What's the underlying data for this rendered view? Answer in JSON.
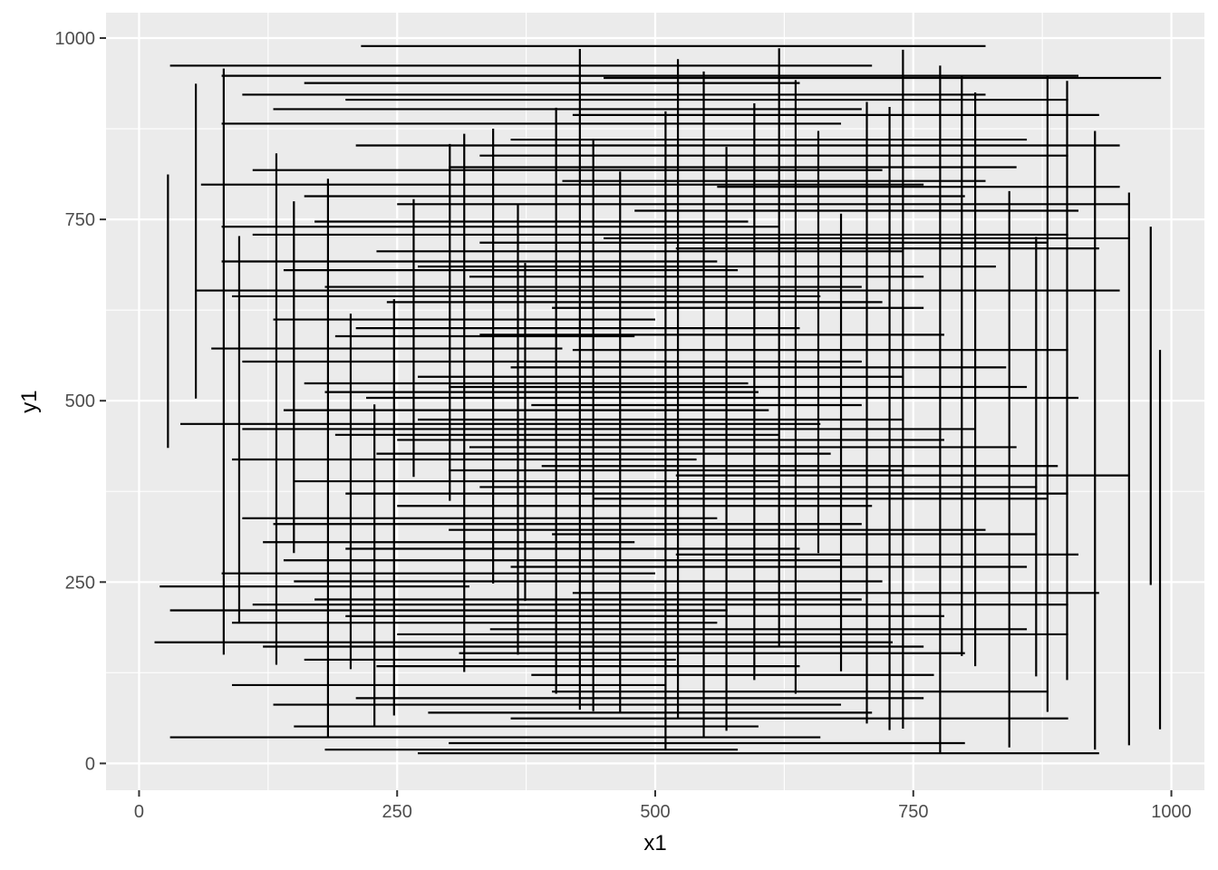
{
  "chart_data": {
    "type": "segment",
    "title": "",
    "xlabel": "x1",
    "ylabel": "y1",
    "xlim": [
      -32,
      1032
    ],
    "ylim": [
      -37,
      1035
    ],
    "xticks": [
      {
        "value": 0,
        "label": "0"
      },
      {
        "value": 250,
        "label": "250"
      },
      {
        "value": 500,
        "label": "500"
      },
      {
        "value": 750,
        "label": "750"
      },
      {
        "value": 1000,
        "label": "1000"
      }
    ],
    "yticks": [
      {
        "value": 0,
        "label": "0"
      },
      {
        "value": 250,
        "label": "250"
      },
      {
        "value": 500,
        "label": "500"
      },
      {
        "value": 750,
        "label": "750"
      },
      {
        "value": 1000,
        "label": "1000"
      }
    ],
    "x_minor": [
      125,
      375,
      625,
      875
    ],
    "y_minor": [
      125,
      375,
      625,
      875
    ],
    "grid": true,
    "panel_color": "#ebebeb",
    "grid_color": "#ffffff",
    "segment_color": "#000000",
    "horizontal_segments": [
      [
        215,
        820,
        989
      ],
      [
        30,
        710,
        962
      ],
      [
        80,
        910,
        948
      ],
      [
        450,
        990,
        945
      ],
      [
        160,
        640,
        938
      ],
      [
        100,
        820,
        922
      ],
      [
        200,
        900,
        915
      ],
      [
        130,
        700,
        902
      ],
      [
        420,
        930,
        894
      ],
      [
        80,
        680,
        882
      ],
      [
        360,
        860,
        860
      ],
      [
        210,
        950,
        852
      ],
      [
        330,
        900,
        838
      ],
      [
        300,
        850,
        822
      ],
      [
        110,
        720,
        818
      ],
      [
        410,
        820,
        803
      ],
      [
        60,
        760,
        798
      ],
      [
        560,
        950,
        795
      ],
      [
        160,
        800,
        782
      ],
      [
        250,
        960,
        771
      ],
      [
        480,
        910,
        762
      ],
      [
        170,
        590,
        747
      ],
      [
        80,
        620,
        740
      ],
      [
        110,
        900,
        729
      ],
      [
        450,
        960,
        724
      ],
      [
        330,
        880,
        718
      ],
      [
        230,
        740,
        706
      ],
      [
        520,
        930,
        710
      ],
      [
        80,
        560,
        692
      ],
      [
        270,
        830,
        685
      ],
      [
        140,
        580,
        680
      ],
      [
        320,
        760,
        671
      ],
      [
        180,
        700,
        657
      ],
      [
        55,
        950,
        652
      ],
      [
        90,
        660,
        644
      ],
      [
        240,
        720,
        636
      ],
      [
        400,
        760,
        628
      ],
      [
        130,
        500,
        612
      ],
      [
        210,
        640,
        600
      ],
      [
        330,
        780,
        591
      ],
      [
        190,
        480,
        589
      ],
      [
        70,
        410,
        572
      ],
      [
        420,
        900,
        570
      ],
      [
        100,
        700,
        554
      ],
      [
        360,
        840,
        546
      ],
      [
        270,
        740,
        533
      ],
      [
        160,
        590,
        524
      ],
      [
        300,
        860,
        519
      ],
      [
        180,
        600,
        512
      ],
      [
        220,
        910,
        504
      ],
      [
        380,
        700,
        494
      ],
      [
        140,
        610,
        487
      ],
      [
        270,
        740,
        474
      ],
      [
        40,
        660,
        468
      ],
      [
        100,
        810,
        461
      ],
      [
        190,
        620,
        453
      ],
      [
        250,
        780,
        446
      ],
      [
        320,
        850,
        436
      ],
      [
        230,
        670,
        427
      ],
      [
        90,
        540,
        419
      ],
      [
        390,
        890,
        410
      ],
      [
        300,
        740,
        404
      ],
      [
        520,
        960,
        397
      ],
      [
        150,
        620,
        389
      ],
      [
        330,
        870,
        381
      ],
      [
        200,
        900,
        372
      ],
      [
        440,
        880,
        365
      ],
      [
        250,
        710,
        355
      ],
      [
        100,
        560,
        338
      ],
      [
        130,
        700,
        330
      ],
      [
        300,
        820,
        322
      ],
      [
        400,
        870,
        316
      ],
      [
        120,
        480,
        305
      ],
      [
        200,
        640,
        296
      ],
      [
        520,
        910,
        288
      ],
      [
        140,
        680,
        280
      ],
      [
        360,
        860,
        271
      ],
      [
        80,
        500,
        262
      ],
      [
        150,
        720,
        251
      ],
      [
        20,
        320,
        244
      ],
      [
        420,
        930,
        235
      ],
      [
        170,
        700,
        226
      ],
      [
        110,
        900,
        219
      ],
      [
        30,
        570,
        211
      ],
      [
        200,
        780,
        203
      ],
      [
        90,
        560,
        194
      ],
      [
        340,
        860,
        185
      ],
      [
        250,
        900,
        178
      ],
      [
        15,
        730,
        167
      ],
      [
        120,
        760,
        161
      ],
      [
        310,
        800,
        152
      ],
      [
        160,
        520,
        143
      ],
      [
        230,
        640,
        134
      ],
      [
        380,
        770,
        122
      ],
      [
        90,
        510,
        108
      ],
      [
        400,
        880,
        99
      ],
      [
        210,
        760,
        90
      ],
      [
        130,
        680,
        81
      ],
      [
        280,
        710,
        70
      ],
      [
        360,
        900,
        62
      ],
      [
        150,
        600,
        51
      ],
      [
        30,
        660,
        36
      ],
      [
        300,
        800,
        28
      ],
      [
        180,
        580,
        19
      ],
      [
        270,
        930,
        14
      ]
    ],
    "vertical_segments": [
      [
        28,
        435,
        812
      ],
      [
        55,
        503,
        937
      ],
      [
        82,
        150,
        958
      ],
      [
        97,
        195,
        727
      ],
      [
        133,
        136,
        841
      ],
      [
        150,
        290,
        775
      ],
      [
        183,
        37,
        806
      ],
      [
        205,
        130,
        620
      ],
      [
        228,
        50,
        495
      ],
      [
        247,
        66,
        640
      ],
      [
        266,
        395,
        778
      ],
      [
        301,
        362,
        854
      ],
      [
        315,
        126,
        868
      ],
      [
        343,
        248,
        875
      ],
      [
        367,
        150,
        770
      ],
      [
        374,
        224,
        690
      ],
      [
        404,
        96,
        904
      ],
      [
        427,
        74,
        985
      ],
      [
        440,
        72,
        860
      ],
      [
        466,
        70,
        816
      ],
      [
        510,
        19,
        899
      ],
      [
        522,
        63,
        971
      ],
      [
        547,
        36,
        954
      ],
      [
        569,
        45,
        850
      ],
      [
        596,
        115,
        910
      ],
      [
        620,
        160,
        986
      ],
      [
        636,
        96,
        942
      ],
      [
        658,
        290,
        872
      ],
      [
        680,
        127,
        758
      ],
      [
        705,
        55,
        912
      ],
      [
        727,
        46,
        905
      ],
      [
        740,
        48,
        984
      ],
      [
        776,
        15,
        962
      ],
      [
        797,
        148,
        948
      ],
      [
        810,
        134,
        925
      ],
      [
        843,
        22,
        789
      ],
      [
        869,
        120,
        726
      ],
      [
        880,
        71,
        947
      ],
      [
        899,
        115,
        941
      ],
      [
        926,
        19,
        872
      ],
      [
        959,
        25,
        787
      ],
      [
        980,
        246,
        740
      ],
      [
        989,
        47,
        570
      ]
    ]
  }
}
